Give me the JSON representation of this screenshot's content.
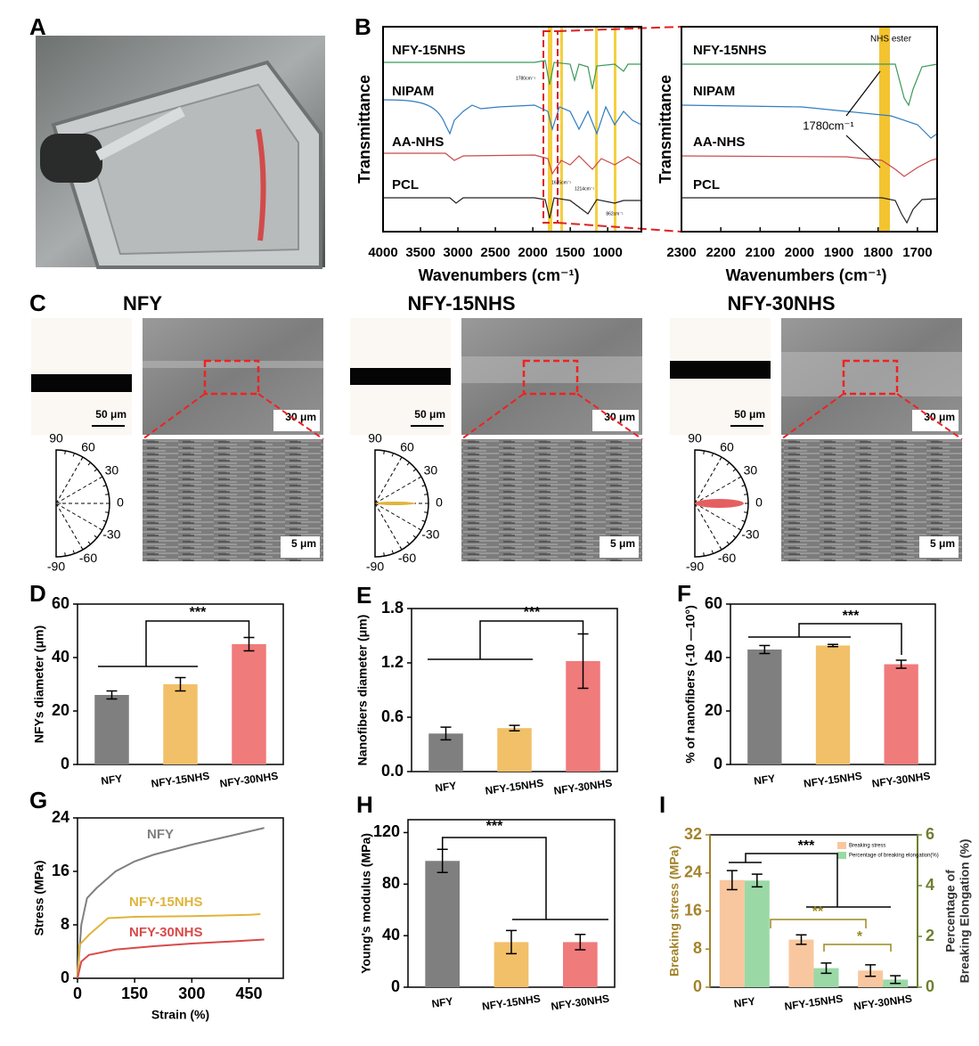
{
  "panel_a": {
    "label": "A"
  },
  "panel_b": {
    "label": "B",
    "plots": [
      {
        "ylabel": "Transmittance",
        "xlabel": "Wavenumbers (cm⁻¹)",
        "xlim": [
          4000,
          550
        ],
        "xticks": [
          4000,
          3500,
          3000,
          2500,
          2000,
          1500,
          1000
        ],
        "series": [
          "NFY-15NHS",
          "NIPAM",
          "AA-NHS",
          "PCL"
        ],
        "annotations": [
          "1780cm⁻¹",
          "1635cm⁻¹",
          "1214cm⁻¹",
          "862cm⁻¹"
        ]
      },
      {
        "ylabel": "Transmittance",
        "xlabel": "Wavenumbers (cm⁻¹)",
        "xlim": [
          2300,
          1650
        ],
        "xticks": [
          2300,
          2200,
          2100,
          2000,
          1900,
          1800,
          1700
        ],
        "series": [
          "NFY-15NHS",
          "NIPAM",
          "AA-NHS",
          "PCL"
        ],
        "annotations": [
          "NHS ester",
          "1780cm⁻¹"
        ]
      }
    ]
  },
  "panel_c": {
    "label": "C",
    "angles": [
      90,
      60,
      30,
      0,
      -30,
      -60,
      -90
    ],
    "samples": [
      {
        "title": "NFY",
        "optical_scale": "50 μm",
        "sem_scale": "30 μm",
        "zoom_scale": "5 μm"
      },
      {
        "title": "NFY-15NHS",
        "optical_scale": "50 μm",
        "sem_scale": "30 μm",
        "zoom_scale": "5 μm"
      },
      {
        "title": "NFY-30NHS",
        "optical_scale": "50 μm",
        "sem_scale": "30 μm",
        "zoom_scale": "5 μm"
      }
    ]
  },
  "chart_data": [
    {
      "type": "bar",
      "panel": "D",
      "ylabel": "NFYs diameter (μm)",
      "categories": [
        "NFY",
        "NFY-15NHS",
        "NFY-30NHS"
      ],
      "series": [
        {
          "colors": [
            "#7f7f7f",
            "#f2c069",
            "#f07b7b"
          ],
          "values": [
            26,
            30,
            45
          ],
          "errors": [
            1.5,
            2.5,
            2.5
          ]
        }
      ],
      "ylim": [
        0,
        60
      ],
      "yticks": [
        0,
        20,
        40,
        60
      ],
      "annotations": [
        "***"
      ]
    },
    {
      "type": "bar",
      "panel": "E",
      "ylabel": "Nanofibers diameter (μm)",
      "categories": [
        "NFY",
        "NFY-15NHS",
        "NFY-30NHS"
      ],
      "series": [
        {
          "colors": [
            "#7f7f7f",
            "#f2c069",
            "#f07b7b"
          ],
          "values": [
            0.42,
            0.48,
            1.22
          ],
          "errors": [
            0.07,
            0.03,
            0.3
          ]
        }
      ],
      "ylim": [
        0,
        1.8
      ],
      "yticks": [
        {
          "value": 0,
          "label": "0.0"
        },
        0.6,
        1.2,
        1.8
      ],
      "annotations": [
        "***"
      ]
    },
    {
      "type": "bar",
      "panel": "F",
      "ylabel": "% of nanofibers (-10 —10°)",
      "categories": [
        "NFY",
        "NFY-15NHS",
        "NFY-30NHS"
      ],
      "series": [
        {
          "colors": [
            "#7f7f7f",
            "#f2c069",
            "#f07b7b"
          ],
          "values": [
            43,
            44.5,
            37.5
          ],
          "errors": [
            1.5,
            0.4,
            1.5
          ]
        }
      ],
      "ylim": [
        0,
        60
      ],
      "yticks": [
        0,
        20,
        40,
        60
      ],
      "annotations": [
        "***"
      ]
    },
    {
      "type": "line",
      "panel": "G",
      "xlabel": "Strain (%)",
      "ylabel": "Stress (MPa)",
      "xlim": [
        0,
        540
      ],
      "xticks": [
        0,
        150,
        300,
        450
      ],
      "ylim": [
        0,
        24
      ],
      "yticks": [
        0,
        8,
        16,
        24
      ],
      "series": [
        {
          "name": "NFY",
          "color": "#808080",
          "x": [
            0,
            10,
            25,
            50,
            100,
            150,
            200,
            300,
            400,
            490
          ],
          "values": [
            0,
            8,
            12,
            13.5,
            16,
            17.5,
            18.5,
            20,
            21.3,
            22.5
          ]
        },
        {
          "name": "NFY-15NHS",
          "color": "#e0b43c",
          "x": [
            0,
            5,
            30,
            60,
            80,
            150,
            300,
            450,
            480
          ],
          "values": [
            0,
            5,
            6.5,
            8,
            9,
            9.2,
            9.3,
            9.5,
            9.6
          ]
        },
        {
          "name": "NFY-30NHS",
          "color": "#d94a4a",
          "x": [
            0,
            10,
            30,
            100,
            200,
            300,
            400,
            490
          ],
          "values": [
            0,
            2.5,
            3.5,
            4.3,
            4.8,
            5.2,
            5.5,
            5.8
          ]
        }
      ]
    },
    {
      "type": "bar",
      "panel": "H",
      "ylabel": "Young's modulus (MPa)",
      "categories": [
        "NFY",
        "NFY-15NHS",
        "NFY-30NHS"
      ],
      "series": [
        {
          "colors": [
            "#7f7f7f",
            "#f2c069",
            "#f07b7b"
          ],
          "values": [
            98,
            35,
            35
          ],
          "errors": [
            9,
            9,
            6
          ]
        }
      ],
      "ylim": [
        0,
        130
      ],
      "yticks": [
        0,
        40,
        80,
        120
      ],
      "annotations": [
        "***"
      ]
    },
    {
      "type": "bar",
      "panel": "I",
      "ylabel": "Breaking stress (MPa)",
      "y2label": [
        "Percentage of",
        "Breaking Elongation (%)"
      ],
      "categories": [
        "NFY",
        "NFY-15NHS",
        "NFY-30NHS"
      ],
      "series": [
        {
          "name": "Breaking stress",
          "color": "#f9c79f",
          "values": [
            22.5,
            10,
            3.5
          ],
          "errors": [
            2,
            1,
            1.2
          ]
        },
        {
          "name": "Percentage of breaking elongation(%)",
          "color": "#9ad9a6",
          "values": [
            4.2,
            0.75,
            0.3
          ],
          "errors": [
            0.25,
            0.2,
            0.15
          ],
          "axis": "y2"
        }
      ],
      "ylim": [
        0,
        32
      ],
      "yticks": [
        0,
        8,
        16,
        24,
        32
      ],
      "y2lim": [
        0,
        6
      ],
      "y2ticks": [
        0,
        2,
        4,
        6
      ],
      "legend": "upper right",
      "annotations": [
        "***",
        "**",
        "*"
      ]
    }
  ]
}
